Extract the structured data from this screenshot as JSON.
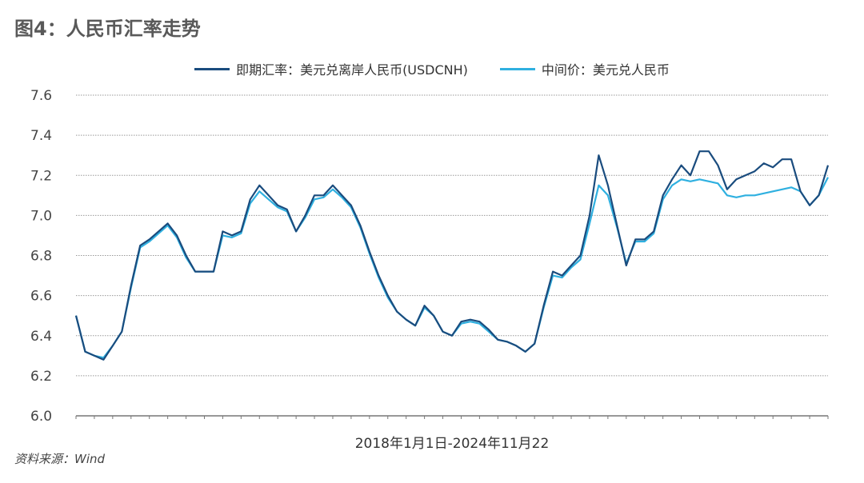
{
  "title": "图4：人民币汇率走势",
  "source": "资料来源：Wind",
  "colors": {
    "cnh": "#1a4c7e",
    "fix": "#2fb0e0"
  },
  "chart_data": {
    "type": "line",
    "title": "图4：人民币汇率走势",
    "xlabel": "2018年1月1日-2024年11月22",
    "ylabel": "",
    "ylim": [
      6.0,
      7.6
    ],
    "yticks": [
      "6.0",
      "6.2",
      "6.4",
      "6.6",
      "6.8",
      "7.0",
      "7.2",
      "7.4",
      "7.6"
    ],
    "x_start": "2018-01",
    "x_end": "2024-11",
    "x_step": "monthly",
    "grid": true,
    "legend_position": "top-center",
    "series": [
      {
        "name": "即期汇率：美元兑离岸人民币(USDCNH)",
        "color": "#1a4c7e",
        "values": [
          6.5,
          6.32,
          6.3,
          6.28,
          6.35,
          6.42,
          6.65,
          6.85,
          6.88,
          6.92,
          6.96,
          6.9,
          6.8,
          6.72,
          6.72,
          6.72,
          6.92,
          6.9,
          6.92,
          7.08,
          7.15,
          7.1,
          7.05,
          7.03,
          6.92,
          7.0,
          7.1,
          7.1,
          7.15,
          7.1,
          7.05,
          6.95,
          6.82,
          6.7,
          6.6,
          6.52,
          6.48,
          6.45,
          6.55,
          6.5,
          6.42,
          6.4,
          6.47,
          6.48,
          6.47,
          6.43,
          6.38,
          6.37,
          6.35,
          6.32,
          6.36,
          6.55,
          6.72,
          6.7,
          6.75,
          6.8,
          7.0,
          7.3,
          7.15,
          6.95,
          6.75,
          6.88,
          6.88,
          6.92,
          7.1,
          7.18,
          7.25,
          7.2,
          7.32,
          7.32,
          7.25,
          7.13,
          7.18,
          7.2,
          7.22,
          7.26,
          7.24,
          7.28,
          7.28,
          7.12,
          7.05,
          7.1,
          7.25
        ]
      },
      {
        "name": "中间价：美元兑人民币",
        "color": "#2fb0e0",
        "values": [
          6.5,
          6.32,
          6.3,
          6.29,
          6.35,
          6.42,
          6.64,
          6.84,
          6.87,
          6.91,
          6.95,
          6.89,
          6.79,
          6.72,
          6.72,
          6.72,
          6.9,
          6.89,
          6.91,
          7.06,
          7.12,
          7.08,
          7.04,
          7.02,
          6.92,
          6.99,
          7.08,
          7.09,
          7.13,
          7.09,
          7.04,
          6.94,
          6.81,
          6.69,
          6.59,
          6.52,
          6.48,
          6.45,
          6.54,
          6.5,
          6.42,
          6.4,
          6.46,
          6.47,
          6.46,
          6.42,
          6.38,
          6.37,
          6.35,
          6.32,
          6.36,
          6.54,
          6.7,
          6.69,
          6.74,
          6.78,
          6.96,
          7.15,
          7.1,
          6.94,
          6.76,
          6.87,
          6.87,
          6.91,
          7.08,
          7.15,
          7.18,
          7.17,
          7.18,
          7.17,
          7.16,
          7.1,
          7.09,
          7.1,
          7.1,
          7.11,
          7.12,
          7.13,
          7.14,
          7.12,
          7.05,
          7.1,
          7.19
        ]
      }
    ]
  }
}
